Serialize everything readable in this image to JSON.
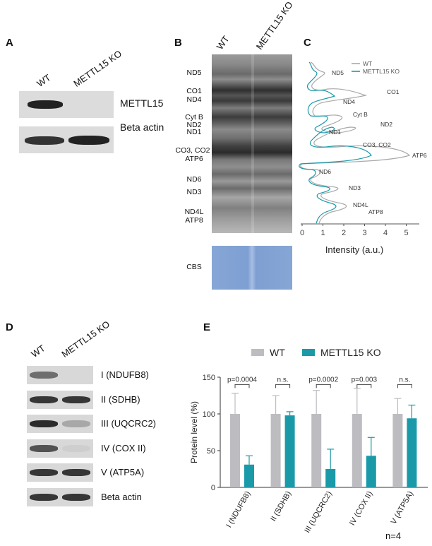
{
  "panels": {
    "A": {
      "letter": "A",
      "lanes": [
        "WT",
        "METTL15 KO"
      ],
      "blots": [
        {
          "label": "METTL15",
          "wt_band": 0.85,
          "ko_band": 0.0
        },
        {
          "label": "Beta actin",
          "wt_band": 0.85,
          "ko_band": 0.9
        }
      ]
    },
    "B": {
      "letter": "B",
      "lanes": [
        "WT",
        "METTL15 KO"
      ],
      "bands": [
        "ND5",
        "CO1",
        "ND4",
        "Cyt B",
        "ND2",
        "ND1",
        "CO3, CO2",
        "ATP6",
        "ND6",
        "ND3",
        "ND4L",
        "ATP8"
      ],
      "stain_label": "CBS"
    },
    "C": {
      "letter": "C",
      "legend": [
        "WT",
        "METTL15 KO"
      ],
      "peak_labels": [
        "ND5",
        "CO1",
        "ND4",
        "Cyt B",
        "ND2",
        "ND1",
        "CO3, CO2",
        "ATP6",
        "ND6",
        "ND3",
        "ND4L",
        "ATP8"
      ],
      "x_ticks": [
        "0",
        "1",
        "2",
        "3",
        "4",
        "5"
      ],
      "x_label": "Intensity (a.u.)",
      "colors": {
        "wt": "#a9a9a9",
        "ko": "#1a9aa9"
      }
    },
    "D": {
      "letter": "D",
      "lanes": [
        "WT",
        "METTL15 KO"
      ],
      "blots": [
        {
          "label": "I (NDUFB8)",
          "wt_band": 0.55,
          "ko_band": 0.0
        },
        {
          "label": "II (SDHB)",
          "wt_band": 0.85,
          "ko_band": 0.85
        },
        {
          "label": "III (UQCRC2)",
          "wt_band": 0.9,
          "ko_band": 0.25
        },
        {
          "label": "IV (COX II)",
          "wt_band": 0.7,
          "ko_band": 0.05
        },
        {
          "label": "V (ATP5A)",
          "wt_band": 0.85,
          "ko_band": 0.85
        },
        {
          "label": "Beta actin",
          "wt_band": 0.85,
          "ko_band": 0.85
        }
      ]
    },
    "E": {
      "letter": "E",
      "n_label": "n=4"
    }
  },
  "chart_data": {
    "type": "bar",
    "categories": [
      "I (NDUFB8)",
      "II (SDHB)",
      "III (UQCRC2)",
      "IV (COX II)",
      "V (ATP5A)"
    ],
    "series": [
      {
        "name": "WT",
        "values": [
          100,
          100,
          100,
          100,
          100
        ],
        "errors": [
          28,
          25,
          32,
          35,
          21
        ],
        "color": "#bdbcc1"
      },
      {
        "name": "METTL15 KO",
        "values": [
          31,
          98,
          25,
          43,
          94
        ],
        "errors": [
          12,
          5,
          27,
          25,
          18
        ],
        "color": "#1a9aa9"
      }
    ],
    "significance": [
      "p=0.0004",
      "n.s.",
      "p=0.0002",
      "p=0.003",
      "n.s."
    ],
    "ylabel": "Protein level (%)",
    "xlabel": "",
    "ylim": [
      0,
      150
    ],
    "yticks": [
      0,
      50,
      100,
      150
    ],
    "legend_position": "top"
  }
}
